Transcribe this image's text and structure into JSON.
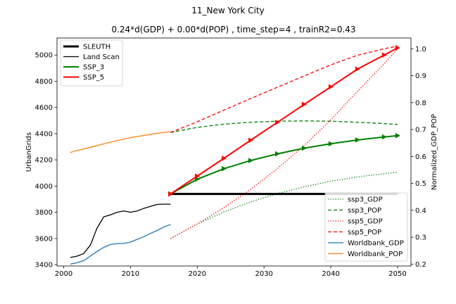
{
  "chart_data": {
    "type": "line",
    "title": "11_New York City",
    "subtitle": "0.24*d(GDP) + 0.00*d(POP) , time_step=4 , trainR2=0.43",
    "xlabel": "",
    "ylabel": "UrbanGrids",
    "y2label": "Normalized_GDP_POP",
    "xlim": [
      1999,
      2052
    ],
    "ylim": [
      3390,
      5130
    ],
    "y2lim": [
      0.193,
      1.04
    ],
    "xticks": [
      2000,
      2010,
      2020,
      2030,
      2040,
      2050
    ],
    "yticks": [
      3400,
      3600,
      3800,
      4000,
      4200,
      4400,
      4600,
      4800,
      5000
    ],
    "y2ticks": [
      0.2,
      0.3,
      0.4,
      0.5,
      0.6,
      0.7,
      0.8,
      0.9,
      1.0
    ],
    "grid": false,
    "legend_left_position": "upper-left",
    "legend_right_position": "lower-right",
    "series_left": [
      {
        "name": "SLEUTH",
        "color": "#000000",
        "style": "solid",
        "width": 3,
        "marker": "none",
        "x": [
          2016,
          2050
        ],
        "y": [
          3940,
          3940
        ]
      },
      {
        "name": "Land Scan",
        "color": "#000000",
        "style": "solid",
        "width": 1.3,
        "marker": "none",
        "x": [
          2001,
          2002,
          2003,
          2004,
          2005,
          2006,
          2007,
          2008,
          2009,
          2010,
          2011,
          2012,
          2013,
          2014,
          2015,
          2016
        ],
        "y": [
          3455,
          3465,
          3485,
          3550,
          3680,
          3765,
          3780,
          3800,
          3810,
          3800,
          3810,
          3830,
          3845,
          3860,
          3862,
          3862
        ]
      },
      {
        "name": "SSP_3",
        "color": "#008000",
        "style": "solid",
        "width": 2,
        "marker": "triangle",
        "x": [
          2016,
          2020,
          2024,
          2028,
          2032,
          2036,
          2040,
          2044,
          2048,
          2050
        ],
        "y": [
          3940,
          4052,
          4133,
          4195,
          4246,
          4289,
          4323,
          4352,
          4375,
          4385
        ]
      },
      {
        "name": "SSP_5",
        "color": "#ff0000",
        "style": "solid",
        "width": 2,
        "marker": "triangle",
        "x": [
          2016,
          2020,
          2024,
          2028,
          2032,
          2036,
          2040,
          2044,
          2048,
          2050
        ],
        "y": [
          3940,
          4076,
          4212,
          4350,
          4486,
          4623,
          4757,
          4893,
          5000,
          5055
        ]
      }
    ],
    "series_right": [
      {
        "name": "ssp3_GDP",
        "color": "#008000",
        "style": "dotted",
        "width": 1.3,
        "x": [
          2016,
          2020,
          2024,
          2028,
          2032,
          2036,
          2040,
          2044,
          2048,
          2050
        ],
        "y": [
          0.295,
          0.349,
          0.394,
          0.431,
          0.462,
          0.487,
          0.508,
          0.524,
          0.536,
          0.541
        ]
      },
      {
        "name": "ssp3_POP",
        "color": "#008000",
        "style": "dashed",
        "width": 1.3,
        "x": [
          2016,
          2020,
          2024,
          2028,
          2032,
          2036,
          2040,
          2044,
          2048,
          2050
        ],
        "y": [
          0.689,
          0.708,
          0.72,
          0.727,
          0.731,
          0.732,
          0.731,
          0.727,
          0.722,
          0.719
        ]
      },
      {
        "name": "ssp5_GDP",
        "color": "#ff0000",
        "style": "dotted",
        "width": 1.3,
        "x": [
          2016,
          2020,
          2024,
          2028,
          2032,
          2036,
          2040,
          2044,
          2048,
          2050
        ],
        "y": [
          0.295,
          0.349,
          0.41,
          0.478,
          0.555,
          0.64,
          0.736,
          0.842,
          0.945,
          1.0
        ]
      },
      {
        "name": "ssp5_POP",
        "color": "#ff0000",
        "style": "dashed",
        "width": 1.3,
        "x": [
          2016,
          2020,
          2024,
          2028,
          2032,
          2036,
          2040,
          2044,
          2048,
          2050
        ],
        "y": [
          0.689,
          0.729,
          0.772,
          0.815,
          0.857,
          0.899,
          0.94,
          0.976,
          1.0,
          1.01
        ]
      },
      {
        "name": "Worldbank_GDP",
        "color": "#1f77b4",
        "style": "solid",
        "width": 1.3,
        "x": [
          2001,
          2002,
          2003,
          2004,
          2005,
          2006,
          2007,
          2008,
          2009,
          2010,
          2011,
          2012,
          2013,
          2014,
          2015,
          2016
        ],
        "y": [
          0.2,
          0.205,
          0.213,
          0.23,
          0.247,
          0.262,
          0.273,
          0.276,
          0.277,
          0.282,
          0.292,
          0.302,
          0.314,
          0.325,
          0.338,
          0.347
        ]
      },
      {
        "name": "Worldbank_POP",
        "color": "#ff7f0e",
        "style": "solid",
        "width": 1.3,
        "x": [
          2001,
          2002,
          2003,
          2004,
          2005,
          2006,
          2007,
          2008,
          2009,
          2010,
          2011,
          2012,
          2013,
          2014,
          2015,
          2016
        ],
        "y": [
          0.615,
          0.622,
          0.628,
          0.634,
          0.64,
          0.647,
          0.653,
          0.659,
          0.664,
          0.67,
          0.674,
          0.678,
          0.682,
          0.686,
          0.689,
          0.692
        ]
      }
    ]
  }
}
